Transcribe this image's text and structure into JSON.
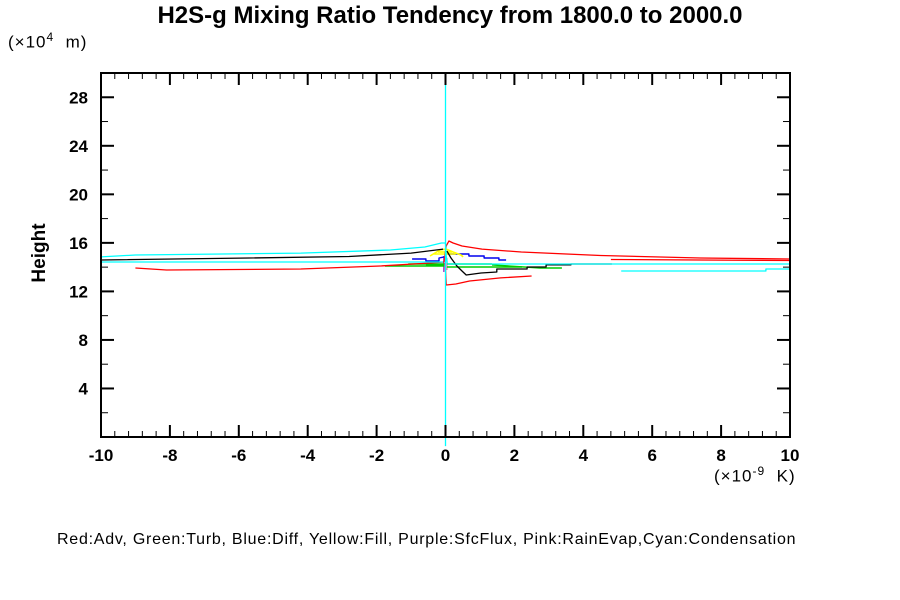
{
  "title": "H2S-g Mixing Ratio Tendency from 1800.0 to 2000.0",
  "y_axis": {
    "label": "Height",
    "units_prefix": "(×10",
    "units_sup": "4",
    "units_suffix": "  m)"
  },
  "x_axis": {
    "units_prefix": "(×10",
    "units_sup": "-9",
    "units_suffix": "  K)"
  },
  "legend": "Red:Adv, Green:Turb, Blue:Diff, Yellow:Fill, Purple:SfcFlux, Pink:RainEvap,Cyan:Condensation",
  "colors": {
    "red": "#ff0000",
    "green": "#00cc00",
    "blue": "#0000ee",
    "yellow": "#ffff00",
    "purple": "#9933cc",
    "pink": "#ff69b4",
    "cyan": "#00ffff",
    "black": "#000000"
  },
  "chart_data": {
    "type": "line",
    "title": "H2S-g Mixing Ratio Tendency from 1800.0 to 2000.0",
    "xlabel": "(×10^-9 K)",
    "ylabel": "Height (×10^4 m)",
    "xlim": [
      -10,
      10
    ],
    "ylim": [
      0,
      30
    ],
    "x_major_ticks": [
      -10,
      -8,
      -6,
      -4,
      -2,
      0,
      2,
      4,
      6,
      8,
      10
    ],
    "x_minor_step": 0.4,
    "y_major_ticks": [
      4,
      8,
      12,
      16,
      20,
      24,
      28
    ],
    "y_minor_step": 2,
    "grid": false,
    "legend_position": "bottom",
    "series": [
      {
        "name": "sfcflux",
        "label": "Purple:SfcFlux",
        "color_key": "purple",
        "width": 1.3,
        "branches": [
          [
            [
              -0.05,
              14.92
            ],
            [
              -0.05,
              13.6
            ]
          ]
        ]
      },
      {
        "name": "rainevap",
        "label": "Pink:RainEvap",
        "color_key": "pink",
        "width": 1.3,
        "branches": [
          [
            [
              0.04,
              14.75
            ],
            [
              0.04,
              13.76
            ]
          ]
        ]
      },
      {
        "name": "turb",
        "label": "Green:Turb",
        "color_key": "green",
        "width": 1.4,
        "branches": [
          [
            [
              -1.76,
              14.09
            ],
            [
              -0.04,
              14.09
            ]
          ],
          [
            [
              -1.08,
              14.26
            ],
            [
              -0.04,
              14.26
            ]
          ],
          [
            [
              -0.57,
              14.18
            ],
            [
              -0.04,
              14.18
            ]
          ],
          [
            [
              0.04,
              14.26
            ],
            [
              1.35,
              14.26
            ]
          ],
          [
            [
              0.04,
              14.01
            ],
            [
              2.22,
              14.01
            ]
          ],
          [
            [
              1.35,
              14.18
            ],
            [
              2.74,
              13.93
            ],
            [
              3.38,
              13.93
            ]
          ]
        ]
      },
      {
        "name": "diff",
        "label": "Blue:Diff",
        "color_key": "blue",
        "width": 1.4,
        "branches": [
          [
            [
              -0.97,
              14.67
            ],
            [
              -0.57,
              14.67
            ],
            [
              -0.57,
              14.51
            ],
            [
              -0.19,
              14.51
            ],
            [
              -0.19,
              14.75
            ],
            [
              -0.04,
              14.84
            ]
          ],
          [
            [
              0.04,
              15.08
            ],
            [
              0.68,
              15.08
            ],
            [
              0.68,
              14.92
            ],
            [
              1.12,
              14.92
            ],
            [
              1.12,
              14.75
            ],
            [
              1.55,
              14.75
            ],
            [
              1.55,
              14.59
            ],
            [
              1.76,
              14.59
            ]
          ]
        ]
      },
      {
        "name": "fill",
        "label": "Yellow:Fill",
        "color_key": "yellow",
        "width": 1.6,
        "branches": [
          [
            [
              -0.45,
              14.92
            ],
            [
              -0.16,
              15.41
            ],
            [
              0.02,
              15.49
            ],
            [
              0.22,
              15.25
            ],
            [
              0.45,
              15.0
            ],
            [
              0.51,
              14.84
            ]
          ],
          [
            [
              -0.33,
              15.08
            ],
            [
              0.3,
              15.08
            ]
          ],
          [
            [
              -0.22,
              15.25
            ],
            [
              0.19,
              15.25
            ]
          ]
        ]
      },
      {
        "name": "net",
        "label": "",
        "color_key": "black",
        "width": 1.3,
        "branches": [
          [
            [
              -10,
              14.59
            ],
            [
              -5.7,
              14.75
            ],
            [
              -2.8,
              14.88
            ],
            [
              -1.0,
              15.16
            ],
            [
              -0.07,
              15.49
            ]
          ],
          [
            [
              0.04,
              15.33
            ],
            [
              0.16,
              14.75
            ],
            [
              0.33,
              14.09
            ],
            [
              0.48,
              13.68
            ],
            [
              0.6,
              13.35
            ],
            [
              1.03,
              13.52
            ],
            [
              1.49,
              13.6
            ],
            [
              1.49,
              13.85
            ],
            [
              2.37,
              13.85
            ],
            [
              2.37,
              14.01
            ],
            [
              2.92,
              14.01
            ],
            [
              2.92,
              14.18
            ],
            [
              3.64,
              14.18
            ],
            [
              3.64,
              14.26
            ],
            [
              4.83,
              14.26
            ]
          ]
        ]
      },
      {
        "name": "adv",
        "label": "Red:Adv",
        "color_key": "red",
        "width": 1.3,
        "branches": [
          [
            [
              -9.0,
              13.93
            ],
            [
              -8.1,
              13.76
            ],
            [
              -4.2,
              13.85
            ],
            [
              -1.9,
              14.09
            ],
            [
              -0.45,
              14.34
            ],
            [
              -0.04,
              14.42
            ]
          ],
          [
            [
              -0.04,
              14.42
            ],
            [
              0.02,
              15.74
            ],
            [
              0.1,
              16.15
            ],
            [
              0.22,
              15.99
            ],
            [
              0.48,
              15.74
            ],
            [
              1.06,
              15.49
            ],
            [
              2.2,
              15.25
            ],
            [
              4.5,
              14.96
            ],
            [
              7.4,
              14.75
            ],
            [
              10,
              14.67
            ]
          ],
          [
            [
              4.8,
              14.63
            ],
            [
              10,
              14.55
            ]
          ],
          [
            [
              -0.01,
              14.34
            ],
            [
              0.02,
              12.53
            ],
            [
              0.3,
              12.61
            ],
            [
              0.7,
              12.86
            ],
            [
              1.6,
              13.11
            ],
            [
              2.5,
              13.27
            ]
          ]
        ]
      },
      {
        "name": "condensation",
        "label": "Cyan:Condensation",
        "color_key": "cyan",
        "width": 1.3,
        "branches": [
          [
            [
              0,
              30
            ],
            [
              0,
              -0.75
            ]
          ],
          [
            [
              -10,
              14.84
            ],
            [
              -9.0,
              15.0
            ],
            [
              -4.2,
              15.16
            ],
            [
              -1.6,
              15.41
            ],
            [
              -0.6,
              15.66
            ],
            [
              -0.12,
              15.99
            ],
            [
              0,
              15.99
            ],
            [
              0.02,
              14.92
            ],
            [
              0.05,
              14.34
            ]
          ],
          [
            [
              -10,
              14.42
            ],
            [
              -0.07,
              14.42
            ]
          ],
          [
            [
              0.05,
              14.26
            ],
            [
              10,
              14.26
            ]
          ],
          [
            [
              5.1,
              13.68
            ],
            [
              9.3,
              13.68
            ],
            [
              9.3,
              13.85
            ],
            [
              10,
              13.85
            ]
          ]
        ]
      }
    ]
  }
}
